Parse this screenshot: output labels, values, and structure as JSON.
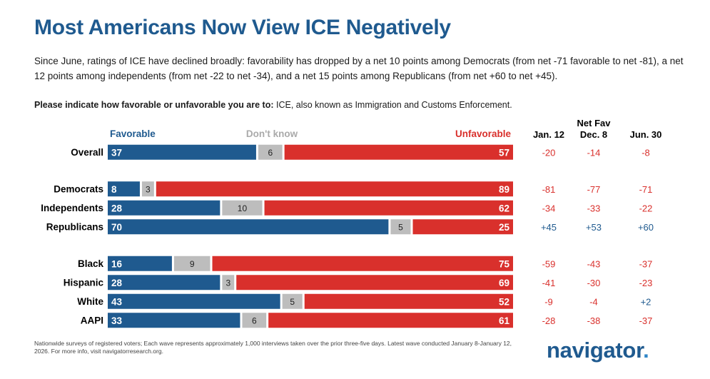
{
  "header": {
    "title": "Most Americans Now View ICE Negatively",
    "subtitle": "Since June, ratings of ICE have declined broadly: favorability has dropped by a net 10 points among Democrats (from net -71 favorable to net -81), a net 12 points among independents (from net -22 to net -34), and a net 15 points among Republicans (from net +60 to net +45).",
    "question_bold": "Please indicate how favorable or unfavorable you are to:",
    "question_rest": " ICE, also known as Immigration and Customs Enforcement."
  },
  "footer": {
    "footnote": "Nationwide surveys of registered voters; Each wave represents approximately 1,000 interviews taken over the prior three-five days. Latest wave conducted January 8-January 12, 2026. For more info, visit navigatorresearch.org.",
    "logo_text": "navigator",
    "logo_dot": "."
  },
  "colors": {
    "favorable": "#1f5a8f",
    "dont_know": "#bdbdbd",
    "unfavorable": "#d9302c",
    "net_negative": "#d9302c",
    "net_positive": "#1f5a8f"
  },
  "chart_data": {
    "type": "bar",
    "stacked": true,
    "orientation": "horizontal",
    "legend": [
      "Favorable",
      "Don't know",
      "Unfavorable"
    ],
    "net_fav_header": "Net Fav",
    "net_columns": [
      "Jan. 12",
      "Dec. 8",
      "Jun. 30"
    ],
    "groups": [
      {
        "rows": [
          {
            "label": "Overall",
            "favorable": 37,
            "dont_know": 6,
            "unfavorable": 57,
            "net": [
              "-20",
              "-14",
              "-8"
            ]
          }
        ]
      },
      {
        "rows": [
          {
            "label": "Democrats",
            "favorable": 8,
            "dont_know": 3,
            "unfavorable": 89,
            "net": [
              "-81",
              "-77",
              "-71"
            ]
          },
          {
            "label": "Independents",
            "favorable": 28,
            "dont_know": 10,
            "unfavorable": 62,
            "net": [
              "-34",
              "-33",
              "-22"
            ]
          },
          {
            "label": "Republicans",
            "favorable": 70,
            "dont_know": 5,
            "unfavorable": 25,
            "net": [
              "+45",
              "+53",
              "+60"
            ]
          }
        ]
      },
      {
        "rows": [
          {
            "label": "Black",
            "favorable": 16,
            "dont_know": 9,
            "unfavorable": 75,
            "net": [
              "-59",
              "-43",
              "-37"
            ]
          },
          {
            "label": "Hispanic",
            "favorable": 28,
            "dont_know": 3,
            "unfavorable": 69,
            "net": [
              "-41",
              "-30",
              "-23"
            ]
          },
          {
            "label": "White",
            "favorable": 43,
            "dont_know": 5,
            "unfavorable": 52,
            "net": [
              "-9",
              "-4",
              "+2"
            ]
          },
          {
            "label": "AAPI",
            "favorable": 33,
            "dont_know": 6,
            "unfavorable": 61,
            "net": [
              "-28",
              "-38",
              "-37"
            ]
          }
        ]
      }
    ]
  }
}
